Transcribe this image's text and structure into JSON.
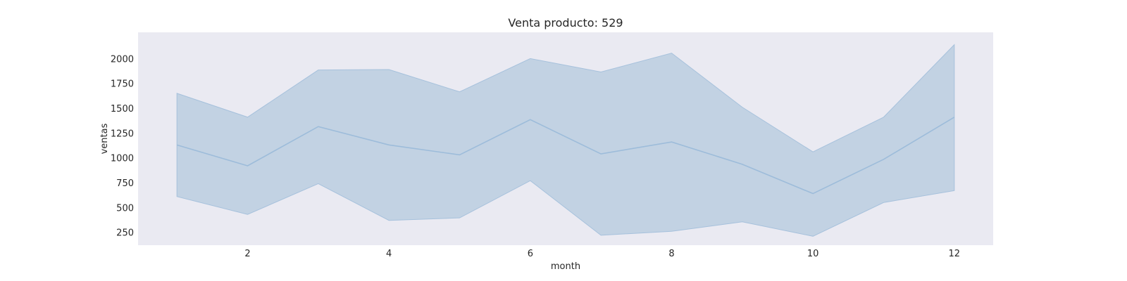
{
  "chart_data": {
    "type": "line",
    "title": "Venta producto: 529",
    "xlabel": "month",
    "ylabel": "ventas",
    "x": [
      1,
      2,
      3,
      4,
      5,
      6,
      7,
      8,
      9,
      10,
      11,
      12
    ],
    "series": [
      {
        "values": [
          1130,
          920,
          1315,
          1130,
          1030,
          1385,
          1040,
          1160,
          935,
          640,
          985,
          1410
        ],
        "band_upper": [
          1650,
          1410,
          1885,
          1890,
          1665,
          2000,
          1865,
          2055,
          1510,
          1060,
          1410,
          2140
        ],
        "band_lower": [
          610,
          430,
          740,
          370,
          395,
          770,
          220,
          260,
          355,
          210,
          550,
          670
        ]
      }
    ],
    "xlim": [
      0.45,
      12.55
    ],
    "ylim": [
      120,
      2265
    ],
    "xticks": [
      2,
      4,
      6,
      8,
      10,
      12
    ],
    "yticks": [
      250,
      500,
      750,
      1000,
      1250,
      1500,
      1750,
      2000
    ],
    "grid": false,
    "colors": {
      "background": "#eaeaf2",
      "band": "#c2d2e3",
      "line": "#9dbcda",
      "band_edge": "#a6c1dc"
    }
  }
}
